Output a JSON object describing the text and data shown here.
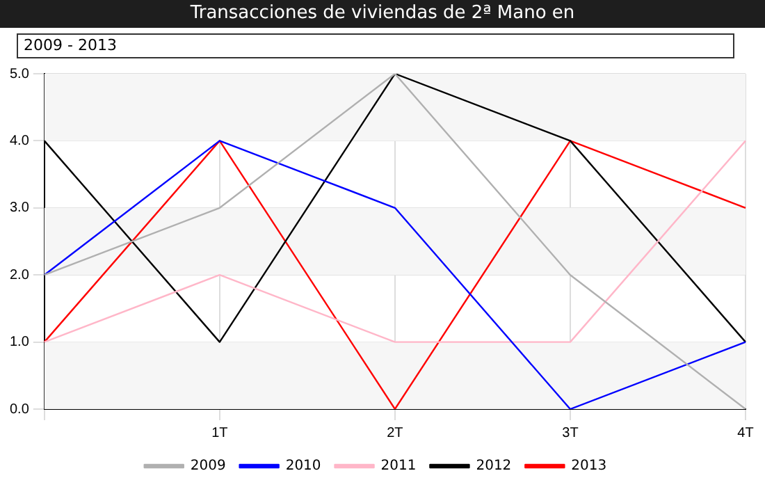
{
  "chart_data": {
    "type": "line",
    "title": "Transacciones de viviendas de 2ª Mano en",
    "subtitle": "2009 - 2013",
    "categories": [
      null,
      "1T",
      "2T",
      "3T",
      "4T"
    ],
    "series": [
      {
        "name": "2009",
        "color": "#b0b0b0",
        "values": [
          2,
          3,
          5,
          2,
          0
        ]
      },
      {
        "name": "2010",
        "color": "#0000ff",
        "values": [
          2,
          4,
          3,
          0,
          1
        ]
      },
      {
        "name": "2011",
        "color": "#ffb6c8",
        "values": [
          1,
          2,
          1,
          1,
          4
        ]
      },
      {
        "name": "2012",
        "color": "#000000",
        "values": [
          4,
          1,
          5,
          4,
          1
        ]
      },
      {
        "name": "2013",
        "color": "#ff0000",
        "values": [
          1,
          4,
          0,
          4,
          3
        ]
      }
    ],
    "ylim": [
      0,
      5
    ],
    "yticks": [
      {
        "value": 0,
        "label": "0.0"
      },
      {
        "value": 1,
        "label": "1.0"
      },
      {
        "value": 2,
        "label": "2.0"
      },
      {
        "value": 3,
        "label": "3.0"
      },
      {
        "value": 4,
        "label": "4.0"
      },
      {
        "value": 5,
        "label": "5.0"
      }
    ],
    "grid": true,
    "legend": "bottom",
    "marker": "none",
    "line_style": "solid"
  }
}
